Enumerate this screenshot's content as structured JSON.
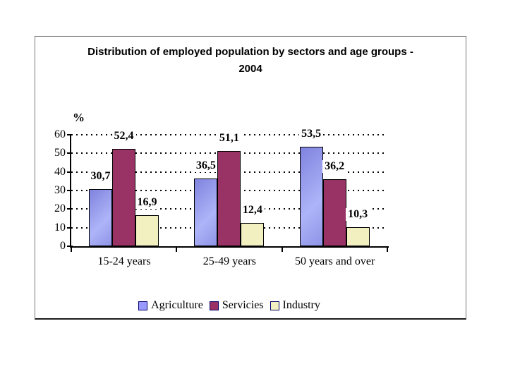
{
  "window": {
    "background": "#ffffff",
    "frame_border_color": "#767676"
  },
  "chart_data": {
    "type": "bar",
    "title": "Distribution of employed population by sectors and age groups -\n2004",
    "unit_label": "%",
    "categories": [
      "15-24 years",
      "25-49 years",
      "50 years and over"
    ],
    "series": [
      {
        "name": "Agriculture",
        "values": [
          30.7,
          36.5,
          53.5
        ],
        "color": "#9999ff",
        "gradient": [
          "#7f83de",
          "#aeb4f8"
        ]
      },
      {
        "name": "Servicies",
        "values": [
          52.4,
          51.1,
          36.2
        ],
        "color": "#993366"
      },
      {
        "name": "Industry",
        "values": [
          16.9,
          12.4,
          10.3
        ],
        "color": "#f2efc1"
      }
    ],
    "y_ticks": [
      0,
      10,
      20,
      30,
      40,
      50,
      60
    ],
    "ylim": [
      0,
      60
    ],
    "decimal_separator": ",",
    "gridline_style": "dotted",
    "grid_on": true,
    "legend_position": "bottom",
    "bar_border_color": "#000000",
    "legend_swatch_border_color": "#00006a",
    "text_color": "#000000"
  }
}
